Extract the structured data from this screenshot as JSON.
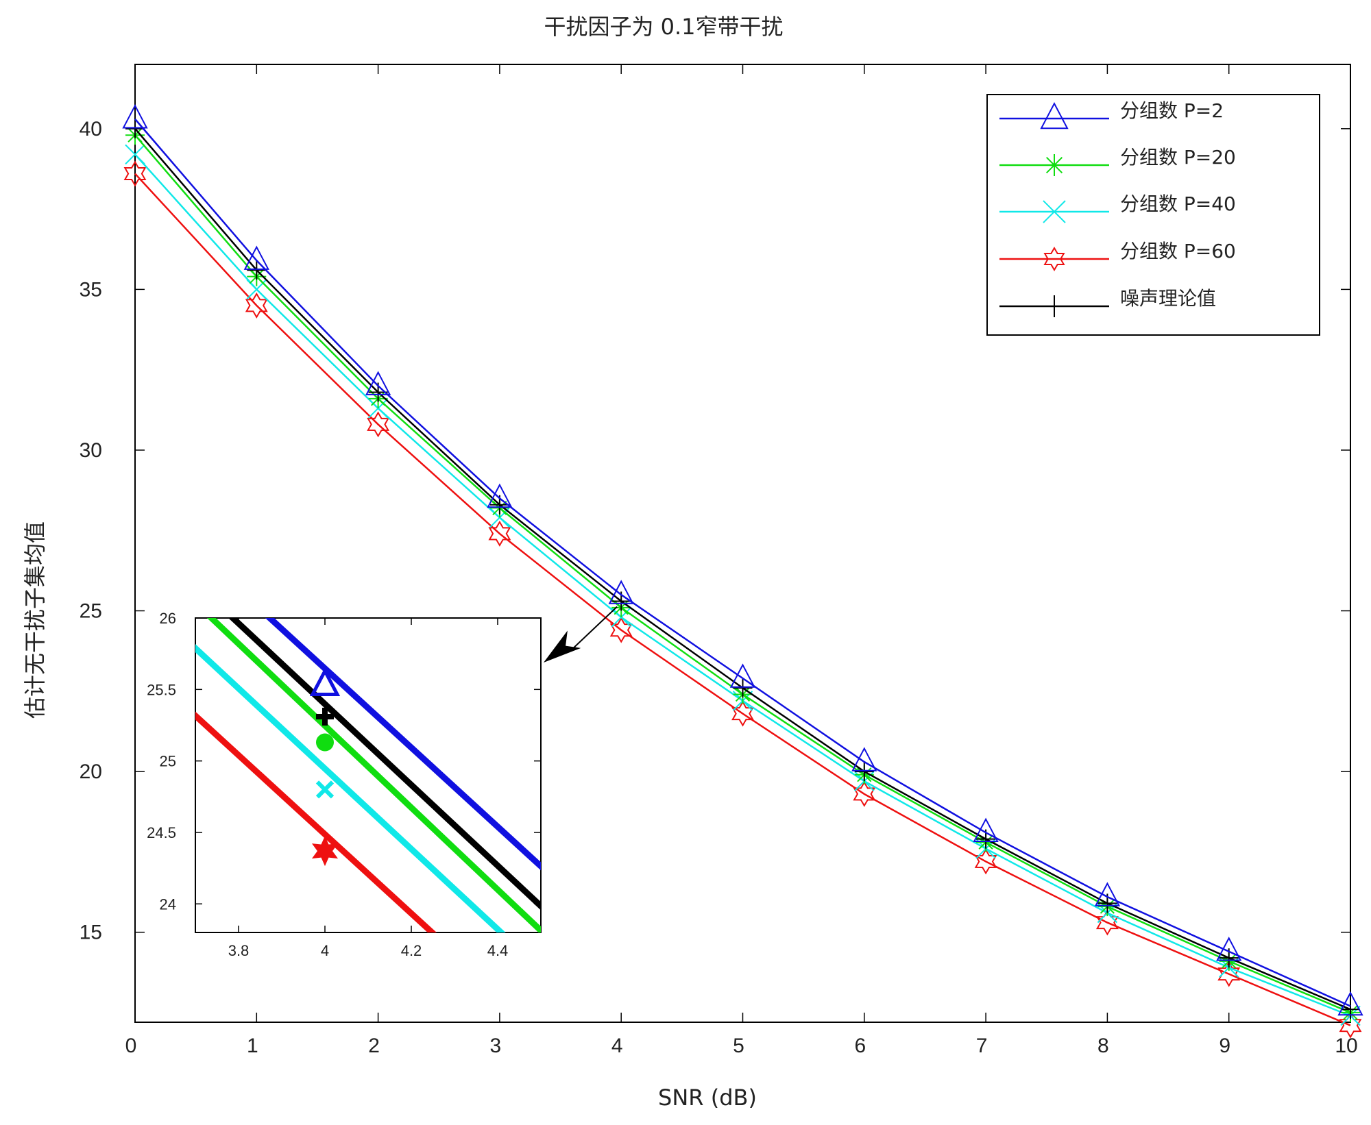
{
  "chart_data": {
    "type": "line",
    "title": "干扰因子为 0.1窄带干扰",
    "xlabel": "SNR (dB)",
    "ylabel": "估计无干扰子集均值",
    "xlim": [
      0,
      10
    ],
    "ylim": [
      12.2,
      42.0
    ],
    "x": [
      0,
      1,
      2,
      3,
      4,
      5,
      6,
      7,
      8,
      9,
      10
    ],
    "xticks": [
      "0",
      "1",
      "2",
      "3",
      "4",
      "5",
      "6",
      "7",
      "8",
      "9",
      "10"
    ],
    "yticks": [
      15,
      20,
      25,
      30,
      35,
      40
    ],
    "ytick_labels": [
      "15",
      "20",
      "25",
      "30",
      "35",
      "40"
    ],
    "grid": false,
    "legend_position": "top-right",
    "series": [
      {
        "name": "分组数 P=2",
        "color": "#1010e0",
        "marker": "triangle",
        "values": [
          40.3,
          35.9,
          32.0,
          28.5,
          25.5,
          22.9,
          20.3,
          18.1,
          16.1,
          14.4,
          12.7
        ]
      },
      {
        "name": "分组数 P=20",
        "color": "#10dd10",
        "marker": "asterisk",
        "values": [
          39.8,
          35.4,
          31.6,
          28.2,
          25.1,
          22.4,
          19.9,
          17.8,
          15.8,
          14.1,
          12.5
        ]
      },
      {
        "name": "分组数 P=40",
        "color": "#10e8e8",
        "marker": "x",
        "values": [
          39.2,
          35.0,
          31.3,
          27.9,
          24.8,
          22.2,
          19.7,
          17.6,
          15.6,
          13.9,
          12.4
        ]
      },
      {
        "name": "分组数 P=60",
        "color": "#ee1010",
        "marker": "hexagram",
        "values": [
          38.6,
          34.5,
          30.8,
          27.4,
          24.4,
          21.8,
          19.3,
          17.2,
          15.3,
          13.7,
          12.1
        ]
      },
      {
        "name": "噪声理论值",
        "color": "#000000",
        "marker": "plus",
        "values": [
          40.0,
          35.6,
          31.8,
          28.3,
          25.3,
          22.6,
          20.0,
          17.9,
          15.9,
          14.2,
          12.6
        ]
      }
    ],
    "inset": {
      "xlim": [
        3.7,
        4.5
      ],
      "ylim": [
        23.8,
        26.0
      ],
      "xticks": [
        3.8,
        4.0,
        4.2,
        4.4
      ],
      "xtick_labels": [
        "3.8",
        "4",
        "4.2",
        "4.4"
      ],
      "yticks": [
        24,
        24.5,
        25,
        25.5,
        26
      ],
      "ytick_labels": [
        "24",
        "24.5",
        "25",
        "25.5",
        "26"
      ],
      "points_x": 4.0,
      "points_y": [
        25.53,
        25.13,
        24.8,
        24.37,
        25.31
      ]
    }
  }
}
